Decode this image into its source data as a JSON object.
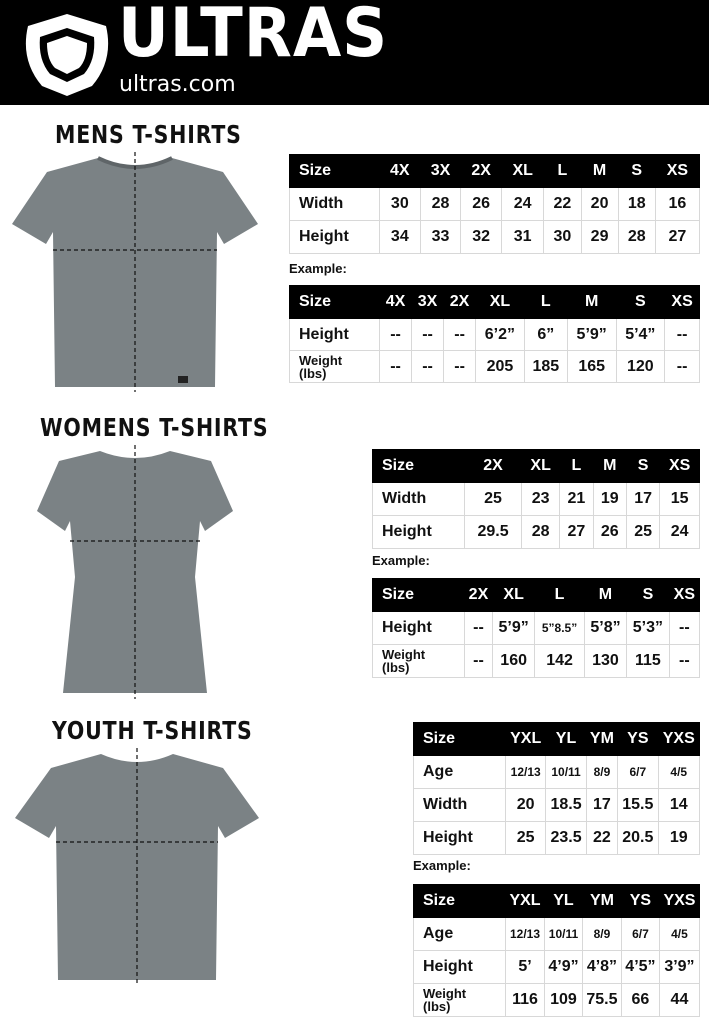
{
  "header": {
    "brand": "ULTRAS",
    "url": "ultras.com",
    "logo_icon": "shield-pentagon-icon"
  },
  "example_label": "Example:",
  "sections": [
    {
      "title": "MENS T-SHIRTS",
      "measure": {
        "columns": [
          "Size",
          "4X",
          "3X",
          "2X",
          "XL",
          "L",
          "M",
          "S",
          "XS"
        ],
        "rows": [
          [
            "Width",
            "30",
            "28",
            "26",
            "24",
            "22",
            "20",
            "18",
            "16"
          ],
          [
            "Height",
            "34",
            "33",
            "32",
            "31",
            "30",
            "29",
            "28",
            "27"
          ]
        ]
      },
      "example": {
        "columns": [
          "Size",
          "4X",
          "3X",
          "2X",
          "XL",
          "L",
          "M",
          "S",
          "XS"
        ],
        "rows": [
          [
            "Height",
            "--",
            "--",
            "--",
            "6’2”",
            "6”",
            "5’9”",
            "5’4”",
            "--"
          ],
          [
            "Weight (lbs)",
            "--",
            "--",
            "--",
            "205",
            "185",
            "165",
            "120",
            "--"
          ]
        ]
      }
    },
    {
      "title": "WOMENS T-SHIRTS",
      "measure": {
        "columns": [
          "Size",
          "2X",
          "XL",
          "L",
          "M",
          "S",
          "XS"
        ],
        "rows": [
          [
            "Width",
            "25",
            "23",
            "21",
            "19",
            "17",
            "15"
          ],
          [
            "Height",
            "29.5",
            "28",
            "27",
            "26",
            "25",
            "24"
          ]
        ]
      },
      "example": {
        "columns": [
          "Size",
          "2X",
          "XL",
          "L",
          "M",
          "S",
          "XS"
        ],
        "rows": [
          [
            "Height",
            "--",
            "5’9”",
            "5”8.5”",
            "5’8”",
            "5’3”",
            "--"
          ],
          [
            "Weight (lbs)",
            "--",
            "160",
            "142",
            "130",
            "115",
            "--"
          ]
        ]
      }
    },
    {
      "title": "YOUTH T-SHIRTS",
      "measure": {
        "columns": [
          "Size",
          "YXL",
          "YL",
          "YM",
          "YS",
          "YXS"
        ],
        "rows": [
          [
            "Age",
            "12/13",
            "10/11",
            "8/9",
            "6/7",
            "4/5"
          ],
          [
            "Width",
            "20",
            "18.5",
            "17",
            "15.5",
            "14"
          ],
          [
            "Height",
            "25",
            "23.5",
            "22",
            "20.5",
            "19"
          ]
        ]
      },
      "example": {
        "columns": [
          "Size",
          "YXL",
          "YL",
          "YM",
          "YS",
          "YXS"
        ],
        "rows": [
          [
            "Age",
            "12/13",
            "10/11",
            "8/9",
            "6/7",
            "4/5"
          ],
          [
            "Height",
            "5’",
            "4’9”",
            "4’8”",
            "4’5”",
            "3’9”"
          ],
          [
            "Weight (lbs)",
            "116",
            "109",
            "75.5",
            "66",
            "44"
          ]
        ]
      }
    }
  ],
  "colors": {
    "header_bg": "#000000",
    "shirt": "#7b8285",
    "grid": "#d8d8d8"
  }
}
